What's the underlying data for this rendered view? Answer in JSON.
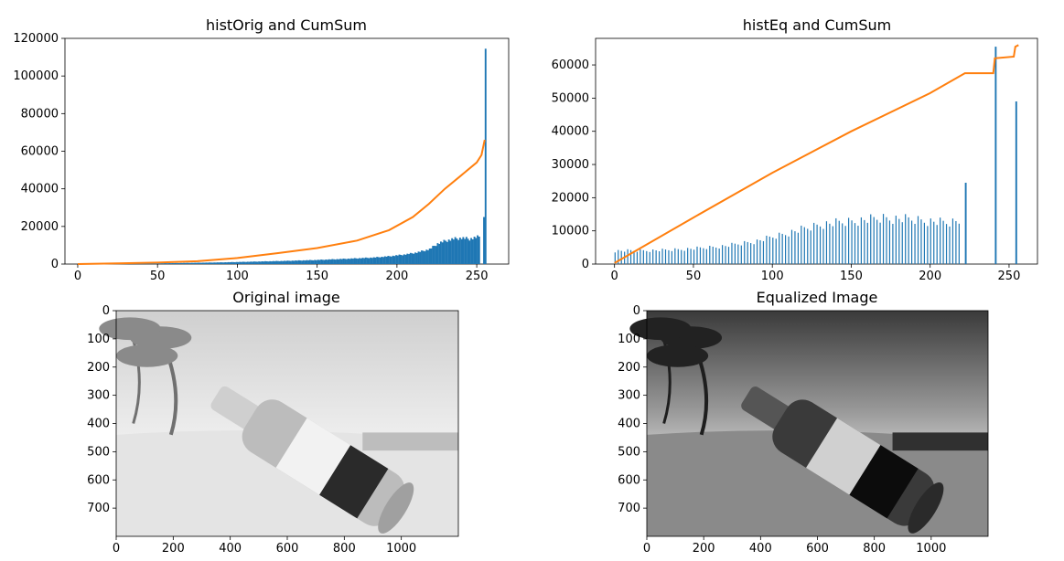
{
  "chart_data": [
    {
      "type": "bar+line",
      "title": "histOrig and CumSum",
      "xlim": [
        -8,
        270
      ],
      "ylim": [
        0,
        120000
      ],
      "xticks": [
        0,
        50,
        100,
        150,
        200,
        250
      ],
      "yticks": [
        0,
        20000,
        40000,
        60000,
        80000,
        100000,
        120000
      ],
      "xtick_labels": [
        "0",
        "50",
        "100",
        "150",
        "200",
        "250"
      ],
      "ytick_labels": [
        "0",
        "20000",
        "40000",
        "60000",
        "80000",
        "100000",
        "120000"
      ],
      "series": [
        {
          "kind": "histogram",
          "color": "#1f77b4",
          "segments": [
            [
              0,
              0
            ],
            [
              20,
              200
            ],
            [
              60,
              500
            ],
            [
              90,
              900
            ],
            [
              110,
              1300
            ],
            [
              130,
              1700
            ],
            [
              150,
              2200
            ],
            [
              170,
              2900
            ],
            [
              185,
              3500
            ],
            [
              195,
              4200
            ],
            [
              205,
              5200
            ],
            [
              212,
              6200
            ],
            [
              220,
              8000
            ],
            [
              225,
              11000
            ],
            [
              230,
              12500
            ],
            [
              235,
              13500
            ],
            [
              240,
              14000
            ],
            [
              245,
              13500
            ],
            [
              250,
              14500
            ],
            [
              252,
              15000
            ]
          ],
          "spikes": [
            [
              254,
              25000
            ],
            [
              255,
              114500
            ]
          ]
        },
        {
          "kind": "cumulative",
          "color": "#ff7f0e",
          "points": [
            [
              0,
              0
            ],
            [
              25,
              400
            ],
            [
              50,
              800
            ],
            [
              75,
              1500
            ],
            [
              100,
              3200
            ],
            [
              125,
              5800
            ],
            [
              150,
              8500
            ],
            [
              175,
              12500
            ],
            [
              195,
              18000
            ],
            [
              210,
              25000
            ],
            [
              220,
              32000
            ],
            [
              230,
              40000
            ],
            [
              240,
              47000
            ],
            [
              250,
              54000
            ],
            [
              253,
              58000
            ],
            [
              255,
              66000
            ]
          ]
        }
      ]
    },
    {
      "type": "bar+line",
      "title": "histEq and CumSum",
      "xlim": [
        -12,
        268
      ],
      "ylim": [
        0,
        68000
      ],
      "xticks": [
        0,
        50,
        100,
        150,
        200,
        250
      ],
      "yticks": [
        0,
        10000,
        20000,
        30000,
        40000,
        50000,
        60000
      ],
      "xtick_labels": [
        "0",
        "50",
        "100",
        "150",
        "200",
        "250"
      ],
      "ytick_labels": [
        "0",
        "10000",
        "20000",
        "30000",
        "40000",
        "50000",
        "60000"
      ],
      "series": [
        {
          "kind": "histogram",
          "color": "#1f77b4",
          "segments": [
            [
              0,
              4000
            ],
            [
              30,
              4200
            ],
            [
              50,
              4700
            ],
            [
              70,
              5500
            ],
            [
              90,
              7000
            ],
            [
              110,
              9500
            ],
            [
              130,
              12000
            ],
            [
              150,
              13000
            ],
            [
              170,
              14000
            ],
            [
              190,
              13500
            ],
            [
              210,
              12500
            ],
            [
              220,
              13000
            ]
          ],
          "spikes": [
            [
              222,
              24500
            ],
            [
              241,
              65500
            ],
            [
              254,
              49000
            ]
          ]
        },
        {
          "kind": "cumulative",
          "color": "#ff7f0e",
          "points": [
            [
              0,
              300
            ],
            [
              50,
              14000
            ],
            [
              100,
              27500
            ],
            [
              150,
              40000
            ],
            [
              200,
              51500
            ],
            [
              222,
              57500
            ],
            [
              240,
              57500
            ],
            [
              241,
              62000
            ],
            [
              253,
              62500
            ],
            [
              254,
              65500
            ],
            [
              256,
              66000
            ]
          ]
        }
      ]
    },
    {
      "type": "image",
      "title": "Original image",
      "xlim": [
        0,
        1200
      ],
      "ylim": [
        800,
        0
      ],
      "xticks": [
        0,
        200,
        400,
        600,
        800,
        1000
      ],
      "yticks": [
        0,
        100,
        200,
        300,
        400,
        500,
        600,
        700
      ],
      "xtick_labels": [
        "0",
        "200",
        "400",
        "600",
        "800",
        "1000"
      ],
      "ytick_labels": [
        "0",
        "100",
        "200",
        "300",
        "400",
        "500",
        "600",
        "700"
      ],
      "tone": "light"
    },
    {
      "type": "image",
      "title": "Equalized Image",
      "xlim": [
        0,
        1200
      ],
      "ylim": [
        800,
        0
      ],
      "xticks": [
        0,
        200,
        400,
        600,
        800,
        1000
      ],
      "yticks": [
        0,
        100,
        200,
        300,
        400,
        500,
        600,
        700
      ],
      "xtick_labels": [
        "0",
        "200",
        "400",
        "600",
        "800",
        "1000"
      ],
      "ytick_labels": [
        "0",
        "100",
        "200",
        "300",
        "400",
        "500",
        "600",
        "700"
      ],
      "tone": "dark"
    }
  ]
}
